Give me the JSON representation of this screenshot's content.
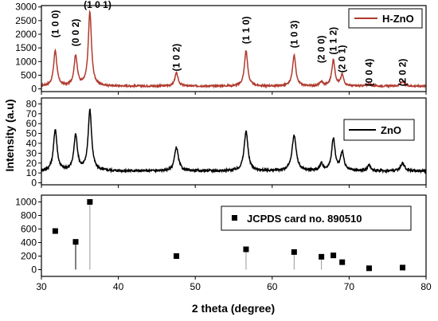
{
  "chart_data": {
    "type": "line",
    "x_axis": {
      "label": "2 theta (degree)",
      "range": [
        30,
        80
      ],
      "ticks": [
        30,
        40,
        50,
        60,
        70,
        80
      ]
    },
    "shared_ylabel": "Intensity (a.u)",
    "panels": [
      {
        "id": "top",
        "type": "line",
        "ylim": [
          -100,
          3050
        ],
        "yticks": [
          0,
          500,
          1000,
          1500,
          2000,
          2500,
          3000
        ],
        "legend": "H-ZnO",
        "legend_position": "top-right",
        "color": "#b03a2e",
        "baseline": 100,
        "noise": 30,
        "peaks": [
          {
            "x": 31.8,
            "h": 1300,
            "w": 0.5
          },
          {
            "x": 34.45,
            "h": 1100,
            "w": 0.5
          },
          {
            "x": 36.3,
            "h": 2700,
            "w": 0.5
          },
          {
            "x": 47.55,
            "h": 480,
            "w": 0.5
          },
          {
            "x": 56.6,
            "h": 1300,
            "w": 0.5
          },
          {
            "x": 62.85,
            "h": 1130,
            "w": 0.5
          },
          {
            "x": 66.4,
            "h": 150,
            "w": 0.5
          },
          {
            "x": 67.95,
            "h": 940,
            "w": 0.5
          },
          {
            "x": 69.1,
            "h": 400,
            "w": 0.45
          },
          {
            "x": 72.6,
            "h": 80,
            "w": 0.5
          },
          {
            "x": 76.95,
            "h": 170,
            "w": 0.55
          }
        ],
        "peak_labels": [
          {
            "text": "(1 0 0)",
            "x": 31.8,
            "y": 2380,
            "rotate": -90
          },
          {
            "text": "(0 0 2)",
            "x": 34.45,
            "y": 2060,
            "rotate": -90
          },
          {
            "text": "(1 0 1)",
            "x": 37.3,
            "y": 2960,
            "rotate": 0
          },
          {
            "text": "(1 0 2)",
            "x": 47.55,
            "y": 1150,
            "rotate": -90
          },
          {
            "text": "(1 1 0)",
            "x": 56.6,
            "y": 2150,
            "rotate": -90
          },
          {
            "text": "(1 0 3)",
            "x": 62.85,
            "y": 2000,
            "rotate": -90
          },
          {
            "text": "(2 0 0)",
            "x": 66.4,
            "y": 1450,
            "rotate": -90
          },
          {
            "text": "(1 1 2)",
            "x": 67.95,
            "y": 1760,
            "rotate": -90
          },
          {
            "text": "(2 0 1)",
            "x": 69.1,
            "y": 1100,
            "rotate": -90
          },
          {
            "text": "(0 0 4)",
            "x": 72.6,
            "y": 600,
            "rotate": -90
          },
          {
            "text": "(2 0 2)",
            "x": 76.95,
            "y": 600,
            "rotate": -90
          }
        ]
      },
      {
        "id": "middle",
        "type": "line",
        "ylim": [
          -2,
          86
        ],
        "yticks": [
          0,
          10,
          20,
          30,
          40,
          50,
          60,
          70,
          80
        ],
        "legend": "ZnO",
        "legend_position": "top-right",
        "color": "#000000",
        "baseline": 12,
        "noise": 1.2,
        "peaks": [
          {
            "x": 31.8,
            "h": 42,
            "w": 0.55
          },
          {
            "x": 34.45,
            "h": 36,
            "w": 0.55
          },
          {
            "x": 36.3,
            "h": 61,
            "w": 0.55
          },
          {
            "x": 47.55,
            "h": 24,
            "w": 0.6
          },
          {
            "x": 56.6,
            "h": 40,
            "w": 0.6
          },
          {
            "x": 62.85,
            "h": 36,
            "w": 0.65
          },
          {
            "x": 66.4,
            "h": 7,
            "w": 0.5
          },
          {
            "x": 67.95,
            "h": 32,
            "w": 0.55
          },
          {
            "x": 69.1,
            "h": 19,
            "w": 0.5
          },
          {
            "x": 72.6,
            "h": 6,
            "w": 0.5
          },
          {
            "x": 76.95,
            "h": 8,
            "w": 0.6
          }
        ]
      },
      {
        "id": "bottom",
        "type": "scatter",
        "ylim": [
          -100,
          1100
        ],
        "yticks": [
          0,
          200,
          400,
          600,
          800,
          1000
        ],
        "legend": "JCPDS card no. 890510",
        "legend_position": "top-right",
        "color": "#000000",
        "points": [
          {
            "x": 31.8,
            "y": 570
          },
          {
            "x": 34.45,
            "y": 410
          },
          {
            "x": 36.3,
            "y": 1000
          },
          {
            "x": 47.55,
            "y": 200
          },
          {
            "x": 56.6,
            "y": 300
          },
          {
            "x": 62.85,
            "y": 260
          },
          {
            "x": 66.4,
            "y": 190
          },
          {
            "x": 67.95,
            "y": 210
          },
          {
            "x": 69.1,
            "y": 110
          },
          {
            "x": 72.6,
            "y": 20
          },
          {
            "x": 76.95,
            "y": 30
          }
        ],
        "sticks": [
          {
            "x": 34.45,
            "y": 400
          },
          {
            "x": 36.3,
            "y": 1000
          },
          {
            "x": 56.6,
            "y": 300
          },
          {
            "x": 62.85,
            "y": 260
          },
          {
            "x": 66.4,
            "y": 190
          },
          {
            "x": 76.95,
            "y": 30
          }
        ]
      }
    ]
  }
}
